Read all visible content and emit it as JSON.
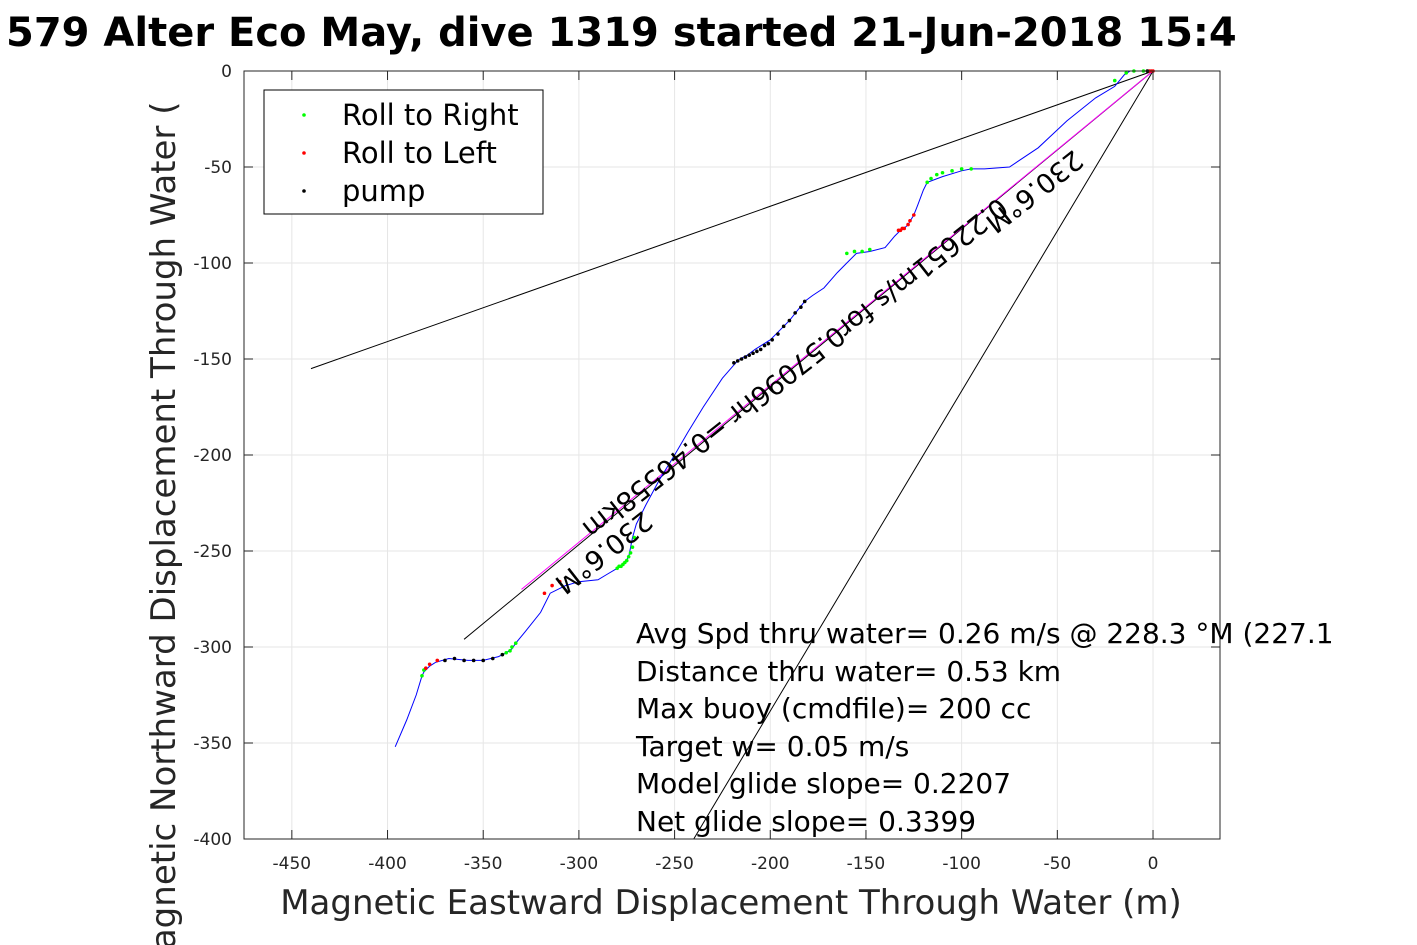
{
  "chart_data": {
    "type": "line",
    "title": "579 Alter Eco May, dive 1319 started 21-Jun-2018 15:4",
    "xlabel": "Magnetic Eastward Displacement Through Water (m)",
    "ylabel": "Magnetic Northward Displacement Through Water (",
    "xlim": [
      -475,
      35
    ],
    "ylim": [
      -400,
      0
    ],
    "xticks": [
      -450,
      -400,
      -350,
      -300,
      -250,
      -200,
      -150,
      -100,
      -50,
      0
    ],
    "yticks": [
      -400,
      -350,
      -300,
      -250,
      -200,
      -150,
      -100,
      -50,
      0
    ],
    "xtick_labels": [
      "-450",
      "-400",
      "-350",
      "-300",
      "-250",
      "-200",
      "-150",
      "-100",
      "-50",
      "0"
    ],
    "ytick_labels": [
      "-400",
      "-350",
      "-300",
      "-250",
      "-200",
      "-150",
      "-100",
      "-50",
      "0"
    ],
    "grid": true,
    "legend_position": "top-left",
    "legend": [
      {
        "label": "Roll to Right",
        "color": "#00ff00"
      },
      {
        "label": "Roll to Left",
        "color": "#ff0000"
      },
      {
        "label": "pump",
        "color": "#000000"
      }
    ],
    "track": {
      "color": "#0000ff",
      "x": [
        0,
        -5,
        -12,
        -15,
        -20,
        -30,
        -45,
        -60,
        -75,
        -88,
        -95,
        -100,
        -110,
        -118,
        -120,
        -123,
        -125,
        -128,
        -130,
        -132,
        -135,
        -140,
        -148,
        -155,
        -160,
        -165,
        -172,
        -178,
        -182,
        -190,
        -200,
        -208,
        -212,
        -216,
        -218,
        -225,
        -235,
        -243,
        -250,
        -258,
        -265,
        -270,
        -272,
        -273,
        -274,
        -276,
        -280,
        -285,
        -290,
        -300,
        -307,
        -315,
        -320,
        -328,
        -333,
        -335,
        -338,
        -342,
        -350,
        -358,
        -368,
        -375,
        -378,
        -381,
        -382,
        -385,
        -390,
        -396
      ],
      "y": [
        0,
        0,
        0,
        -2,
        -8,
        -14,
        -26,
        -40,
        -50,
        -51,
        -51,
        -52,
        -55,
        -58,
        -62,
        -70,
        -75,
        -80,
        -82,
        -83,
        -86,
        -92,
        -94,
        -95,
        -100,
        -105,
        -113,
        -117,
        -120,
        -130,
        -140,
        -145,
        -148,
        -150,
        -152,
        -160,
        -175,
        -188,
        -200,
        -213,
        -226,
        -236,
        -243,
        -248,
        -253,
        -256,
        -259,
        -262,
        -265,
        -266,
        -268,
        -272,
        -282,
        -292,
        -298,
        -301,
        -303,
        -305,
        -307,
        -307,
        -306,
        -308,
        -310,
        -313,
        -315,
        -325,
        -338,
        -352
      ]
    },
    "roll_right_points": {
      "color": "#00ff00",
      "x": [
        -5,
        -10,
        -14,
        -20,
        -95,
        -100,
        -105,
        -110,
        -113,
        -116,
        -118,
        -148,
        -152,
        -156,
        -160,
        -271,
        -272,
        -273,
        -274,
        -275,
        -276,
        -277,
        -278,
        -279,
        -280,
        -333,
        -335,
        -336,
        -338,
        -340,
        -381,
        -382
      ],
      "y": [
        0,
        0,
        -1,
        -5,
        -51,
        -51,
        -52,
        -53,
        -54,
        -56,
        -58,
        -93,
        -94,
        -94,
        -95,
        -243,
        -248,
        -251,
        -253,
        -255,
        -256,
        -257,
        -258,
        -258,
        -259,
        -298,
        -300,
        -302,
        -303,
        -304,
        -312,
        -315
      ]
    },
    "roll_left_points": {
      "color": "#ff0000",
      "x": [
        0,
        -1,
        -2,
        -125,
        -127,
        -128,
        -130,
        -131,
        -132,
        -133,
        -310,
        -314,
        -318,
        -374,
        -378,
        -380
      ],
      "y": [
        0,
        0,
        0,
        -75,
        -78,
        -80,
        -82,
        -82,
        -83,
        -83,
        -266,
        -268,
        -272,
        -307,
        -309,
        -311
      ]
    },
    "pump_points": {
      "color": "#000000",
      "x": [
        -182,
        -184,
        -187,
        -190,
        -193,
        -196,
        -199,
        -201,
        -203,
        -205,
        -207,
        -209,
        -211,
        -213,
        -215,
        -217,
        -219,
        -340,
        -345,
        -350,
        -355,
        -360,
        -365,
        -370,
        -3
      ],
      "y": [
        -120,
        -123,
        -126,
        -130,
        -133,
        -137,
        -140,
        -142,
        -143,
        -145,
        -146,
        -147,
        -148,
        -149,
        -150,
        -151,
        -152,
        -304,
        -306,
        -307,
        -307,
        -307,
        -306,
        -307,
        0
      ]
    },
    "reference_lines": [
      {
        "name": "",
        "color": "#000000",
        "x": [
          0,
          -440
        ],
        "y": [
          0,
          -155
        ]
      },
      {
        "name": "",
        "color": "#000000",
        "x": [
          0,
          -240
        ],
        "y": [
          0,
          -400
        ]
      },
      {
        "name": "",
        "color": "#000000",
        "x": [
          0,
          -360
        ],
        "y": [
          0,
          -296
        ]
      },
      {
        "name": "",
        "color": "#ff00ff",
        "x": [
          0,
          -330
        ],
        "y": [
          0,
          -270
        ]
      }
    ],
    "annotations": [
      {
        "text": "230.6°M",
        "x": -290,
        "y": -247,
        "rotation": 141.8
      },
      {
        "text": "0.22651m/s for0.57096hr =0.46558km",
        "x": -190,
        "y": -151,
        "rotation": 141.8
      },
      {
        "text": "230.6°M",
        "x": -65,
        "y": -59,
        "rotation": 141.8
      }
    ],
    "info_lines": [
      "Avg Spd thru water=  0.26 m/s @ 228.3 °M (227.1",
      "Distance thru water=  0.53 km",
      "Max buoy (cmdfile)= 200 cc",
      "Target w= 0.05 m/s",
      "Model glide slope= 0.2207",
      "Net glide slope= 0.3399"
    ]
  }
}
